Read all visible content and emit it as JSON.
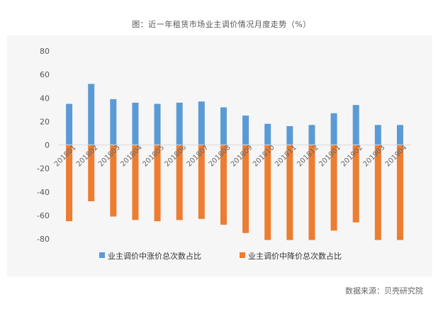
{
  "title": "图：近一年租赁市场业主调价情况月度走势（%）",
  "source": "数据来源：贝壳研究院",
  "colors": {
    "up": "#5B9BD5",
    "down": "#ED7D31",
    "axis": "#d9d9d9"
  },
  "chart_data": {
    "type": "bar",
    "categories": [
      "201801",
      "201802",
      "201803",
      "201804",
      "201805",
      "201806",
      "201807",
      "201808",
      "201809",
      "201810",
      "201811",
      "201812",
      "201901",
      "201902",
      "201903",
      "201904"
    ],
    "series": [
      {
        "name": "业主调价中涨价总次数占比",
        "values": [
          35,
          52,
          39,
          36,
          35,
          36,
          37,
          32,
          25,
          18,
          16,
          17,
          27,
          34,
          17,
          17
        ]
      },
      {
        "name": "业主调价中降价总次数占比",
        "values": [
          -65,
          -48,
          -61,
          -64,
          -65,
          -64,
          -63,
          -68,
          -75,
          -81,
          -81,
          -81,
          -73,
          -66,
          -81,
          -81
        ]
      }
    ],
    "ylim": [
      -80,
      80
    ],
    "yticks": [
      "80",
      "60",
      "40",
      "20",
      "0",
      "-20",
      "-40",
      "-60",
      "-80"
    ],
    "grid": false,
    "legend_position": "bottom"
  }
}
